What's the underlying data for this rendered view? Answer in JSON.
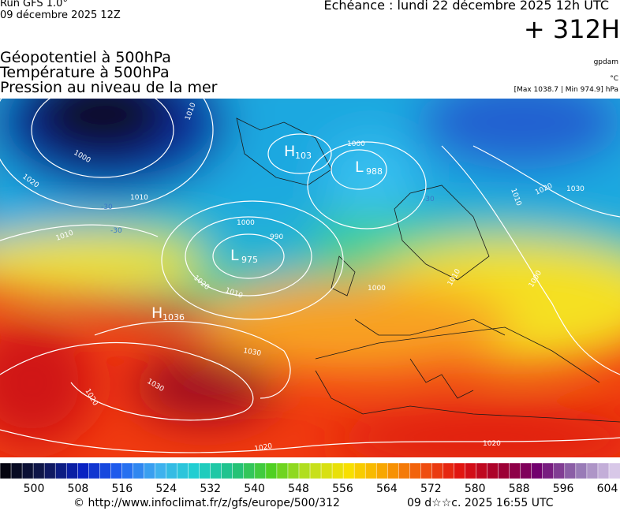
{
  "header": {
    "run": "Run GFS 1.0°",
    "run_date": "09 décembre 2025 12Z",
    "valid": "Echéance : lundi 22 décembre 2025 12h UTC",
    "lead": "+ 312H"
  },
  "fields": [
    "Géopotentiel à 500hPa",
    "Température à 500hPa",
    "Pression au niveau de la mer"
  ],
  "units": {
    "geopotential": "gpdam",
    "temperature": "°C",
    "pressure": "[Max 1038.7 | Min 974.9] hPa"
  },
  "map": {
    "centers": [
      {
        "letter": "H",
        "value": 1036
      },
      {
        "letter": "L",
        "value": 975
      },
      {
        "letter": "L",
        "value": 988
      },
      {
        "letter": "H",
        "value": 103
      }
    ],
    "isobar_labels": [
      1010,
      1000,
      1020,
      1010,
      1010,
      1020,
      1010,
      990,
      1000,
      1000,
      1000,
      1010,
      1020,
      1030,
      1030,
      1030,
      1020,
      1020,
      1020,
      1010,
      1000
    ],
    "temperature_labels": [
      -30,
      -30,
      -30
    ]
  },
  "colorbar": {
    "labels": [
      500,
      508,
      516,
      524,
      532,
      540,
      548,
      556,
      564,
      572,
      580,
      588,
      596,
      604
    ]
  },
  "footer": {
    "source": "© http://www.infoclimat.fr/z/gfs/europe/500/312",
    "generated": "09 d☆☆c. 2025 16:55 UTC"
  }
}
